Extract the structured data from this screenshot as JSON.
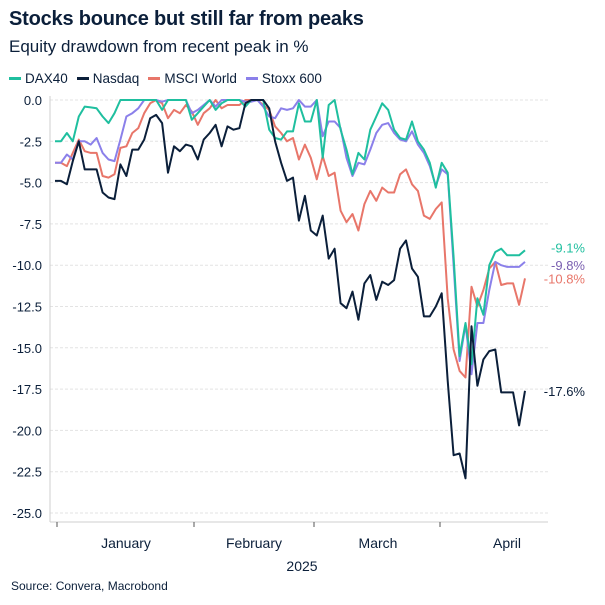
{
  "chart_data": {
    "type": "line",
    "title": "Stocks bounce but still far from peaks",
    "subtitle": "Equity drawdown from recent peak in %",
    "xlabel": "2025",
    "ylabel": "",
    "ylim": [
      -25,
      0
    ],
    "yticks": [
      "0.0",
      "-2.5",
      "-5.0",
      "-7.5",
      "-10.0",
      "-12.5",
      "-15.0",
      "-17.5",
      "-20.0",
      "-22.5",
      "-25.0"
    ],
    "ytick_values": [
      0,
      -2.5,
      -5,
      -7.5,
      -10,
      -12.5,
      -15,
      -17.5,
      -20,
      -22.5,
      -25
    ],
    "xticks": [
      "January",
      "February",
      "March",
      "April"
    ],
    "grid": true,
    "legend_position": "top-left",
    "series": [
      {
        "name": "DAX40",
        "color": "#1fbf9f",
        "end_label": "-9.1%",
        "label_color": "#1fbf9f",
        "values": [
          -2.5,
          -2.5,
          -2.0,
          -2.5,
          -1.0,
          -0.4,
          -0.45,
          -0.5,
          -1.0,
          -1.4,
          -0.8,
          0,
          0,
          0,
          0,
          0,
          0,
          0,
          -0.6,
          0,
          0,
          0,
          0,
          -1.2,
          -0.8,
          -0.4,
          0,
          -0.6,
          -0.2,
          0,
          0,
          0,
          -0.4,
          0,
          0,
          0,
          -1.8,
          -2.3,
          -2.4,
          -1.9,
          -1.9,
          -0.2,
          -1.3,
          -1.3,
          0,
          -3.5,
          -0.3,
          0,
          -1.8,
          -3.0,
          -4.5,
          -3.2,
          -3.6,
          -1.8,
          -1.0,
          -0.2,
          -0.6,
          -1.8,
          -2.3,
          -2.4,
          -1.3,
          -2.5,
          -3.0,
          -3.8,
          -5.3,
          -3.8,
          -4.4,
          -9.5,
          -15.5,
          -13.5,
          -16.0,
          -12.0,
          -13.0,
          -10.0,
          -9.2,
          -9.0,
          -9.4,
          -9.4,
          -9.4,
          -9.1
        ]
      },
      {
        "name": "Nasdaq",
        "color": "#0b1f3a",
        "end_label": "-17.6%",
        "label_color": "#0b1f3a",
        "values": [
          -4.9,
          -4.9,
          -5.1,
          -3.7,
          -2.5,
          -4.2,
          -4.2,
          -4.2,
          -5.6,
          -5.9,
          -6.0,
          -3.9,
          -4.6,
          -3.0,
          -3.0,
          -2.4,
          -1.1,
          -0.9,
          -1.4,
          -4.4,
          -2.8,
          -3.1,
          -2.7,
          -2.8,
          -3.6,
          -2.4,
          -2.0,
          -1.5,
          -2.8,
          -1.6,
          -1.8,
          -1.7,
          -0.2,
          0,
          0,
          0,
          -0.5,
          -2.5,
          -3.8,
          -4.9,
          -4.7,
          -7.3,
          -5.8,
          -7.9,
          -8.2,
          -7.0,
          -9.6,
          -9.0,
          -12.3,
          -12.6,
          -11.6,
          -13.3,
          -11.1,
          -10.6,
          -12.1,
          -11.0,
          -11.2,
          -10.9,
          -9.0,
          -8.5,
          -10.2,
          -10.7,
          -13.1,
          -13.1,
          -12.5,
          -11.7,
          -17.0,
          -21.5,
          -21.4,
          -22.9,
          -13.7,
          -17.3,
          -15.7,
          -15.2,
          -15.1,
          -17.7,
          -17.7,
          -17.7,
          -19.7,
          -17.6
        ]
      },
      {
        "name": "MSCI World",
        "color": "#e8766a",
        "end_label": "-10.8%",
        "label_color": "#e8766a",
        "values": [
          -3.8,
          -3.8,
          -4.0,
          -3.2,
          -2.4,
          -3.1,
          -3.2,
          -3.2,
          -4.6,
          -4.7,
          -4.5,
          -2.9,
          -2.8,
          -2.0,
          -1.7,
          -0.8,
          -0.2,
          0,
          -0.2,
          -1.1,
          -0.6,
          -0.8,
          -0.3,
          -0.7,
          -1.5,
          -0.8,
          -0.5,
          0,
          -0.5,
          -0.3,
          -0.3,
          -0.3,
          0,
          0,
          0,
          -0.3,
          -0.6,
          -1.6,
          -2.0,
          -2.5,
          -2.3,
          -3.6,
          -2.7,
          -3.5,
          -4.8,
          -3.4,
          -4.6,
          -4.4,
          -6.7,
          -7.4,
          -6.9,
          -7.9,
          -6.3,
          -5.5,
          -6.1,
          -5.3,
          -5.6,
          -5.6,
          -4.5,
          -4.2,
          -5.1,
          -5.5,
          -7.0,
          -7.2,
          -6.6,
          -6.2,
          -12.0,
          -15.1,
          -16.4,
          -16.8,
          -11.3,
          -12.5,
          -11.5,
          -10.2,
          -9.8,
          -11.2,
          -11.1,
          -11.1,
          -12.4,
          -10.8
        ]
      },
      {
        "name": "Stoxx 600",
        "color": "#8b80ea",
        "end_label": "-9.8%",
        "label_color": "#7a5fb0",
        "values": [
          -3.8,
          -3.8,
          -3.3,
          -3.6,
          -2.5,
          -2.5,
          -2.7,
          -2.3,
          -3.2,
          -3.6,
          -3.7,
          -2.4,
          -1.0,
          -0.8,
          -0.5,
          0,
          0,
          0,
          -0.1,
          0,
          0,
          0,
          0,
          -0.8,
          -0.6,
          -0.3,
          0,
          -0.4,
          0,
          0,
          0,
          0,
          -0.1,
          -0.1,
          0,
          -0.4,
          -1.0,
          -1.1,
          -0.5,
          -0.6,
          -0.5,
          0,
          -0.4,
          -0.4,
          0,
          -2.2,
          -1.3,
          -1.3,
          -1.7,
          -3.5,
          -4.6,
          -3.8,
          -3.9,
          -3.0,
          -2.0,
          -1.5,
          -1.4,
          -2.0,
          -2.4,
          -2.5,
          -1.9,
          -2.7,
          -3.2,
          -4.0,
          -5.2,
          -4.2,
          -4.5,
          -10.0,
          -15.8,
          -13.6,
          -16.6,
          -13.5,
          -13.5,
          -11.5,
          -9.8,
          -10.0,
          -10.1,
          -10.1,
          -10.1,
          -9.8
        ]
      }
    ],
    "source": "Source: Convera, Macrobond"
  }
}
